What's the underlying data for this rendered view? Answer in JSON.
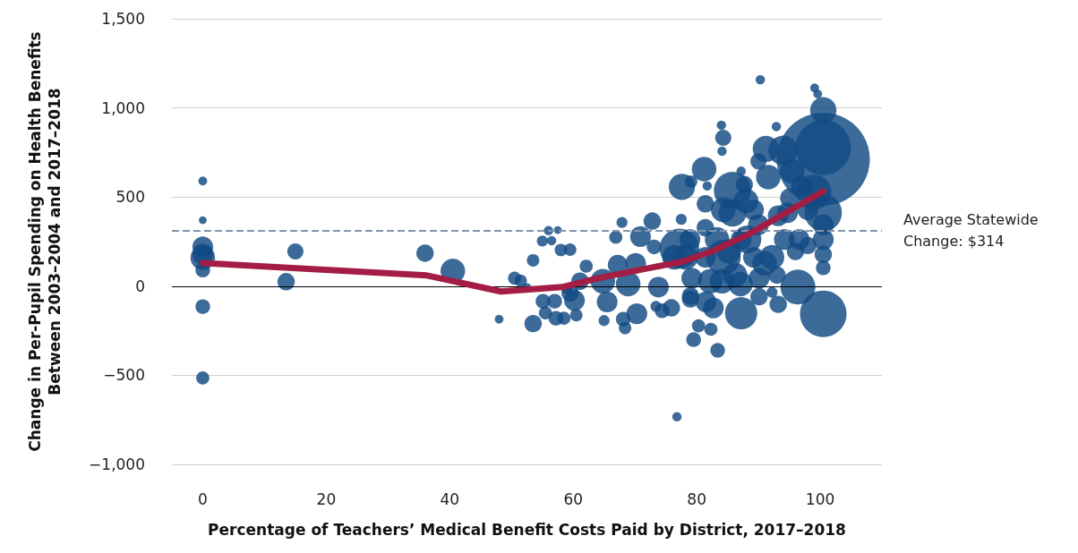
{
  "chart_data": {
    "type": "bubble",
    "xlabel": "Percentage of Teachers’ Medical Benefit Costs Paid by District, 2017–2018",
    "ylabel": "Change in Per-Pupil Spending on Health Benefits\nBetween 2003–2004 and 2017–2018",
    "xlim": [
      -5,
      110
    ],
    "xticks": [
      0,
      20,
      40,
      60,
      80,
      100
    ],
    "ylim": [
      -1000,
      1500
    ],
    "yticks": [
      {
        "value": -1000,
        "label": "−1,000"
      },
      {
        "value": -500,
        "label": "−500"
      },
      0,
      500,
      {
        "value": 1000,
        "label": "1,000"
      },
      {
        "value": 1500,
        "label": "1,500"
      }
    ],
    "grid": "y",
    "marker": "circle",
    "ref_lines": [
      {
        "axis": "y",
        "value": 314,
        "label": "Average Statewide Change: $314",
        "color": "#8594ad",
        "line_style": "dashed"
      },
      {
        "axis": "y",
        "value": 0,
        "color": "#000000",
        "line_style": "solid"
      }
    ],
    "series": [
      {
        "color": "#114a82",
        "x": [
          0,
          0,
          0,
          0,
          0,
          0,
          0,
          0,
          15,
          13.5,
          36,
          40.5,
          48,
          50.5,
          51.5,
          52.5,
          53.5,
          53.5,
          55.5,
          56.5,
          57.5,
          57,
          58.5,
          59.5,
          59,
          90.3,
          99.1,
          99.6,
          100.5,
          100.5,
          100.5,
          84,
          84.3,
          84.1,
          92.9,
          91.2,
          90,
          87.2,
          81.2,
          77.6,
          79.1,
          81.7,
          85.8,
          100.5,
          87.7,
          94,
          95.5,
          91.6,
          99,
          95.1,
          100.5,
          100.5,
          100.5,
          100.5,
          96.6,
          93.2,
          89.2,
          81.4,
          85.8,
          81.4,
          83.3,
          88.2,
          84.3,
          86.2,
          91,
          93,
          96.4,
          100.5,
          93.2,
          92.2,
          90.1,
          87.2,
          83.4,
          79.5,
          82.3,
          80.3,
          82.7,
          79,
          76.8,
          77.5,
          72.8,
          70.9,
          67.9,
          66.9,
          73.1,
          58,
          56,
          55,
          62.1,
          67.2,
          70.1,
          64.8,
          68.9,
          73.8,
          77.2,
          78.2,
          79.2,
          82.2,
          84.1,
          87.1,
          90.1,
          61.1,
          60.2,
          55.1,
          57.2,
          60.5,
          65,
          68.1,
          68.4,
          65.5,
          70.3,
          74.4,
          73.4,
          75.9,
          79,
          81.5,
          59.5,
          96,
          98,
          98,
          97,
          88,
          90,
          84.3,
          87.2,
          85.2,
          81.4,
          78.9,
          76.4,
          94.2,
          92.2,
          89.2,
          94.7
        ],
        "values": [
          590,
          370,
          220,
          180,
          160,
          90,
          -115,
          -515,
          195,
          25,
          185,
          85,
          -185,
          45,
          30,
          -10,
          145,
          -210,
          -150,
          255,
          315,
          -85,
          -180,
          205,
          -15,
          1158,
          1112,
          1078,
          987,
          712,
          778,
          903,
          832,
          757,
          895,
          770,
          700,
          645,
          657,
          557,
          587,
          562,
          537,
          412,
          570,
          762,
          645,
          612,
          528,
          495,
          345,
          262,
          178,
          103,
          262,
          395,
          428,
          462,
          412,
          328,
          262,
          262,
          162,
          62,
          128,
          62,
          -5,
          -155,
          -102,
          -35,
          -59,
          -152,
          -360,
          -300,
          -242,
          -222,
          -122,
          -55,
          -733,
          375,
          365,
          278,
          357,
          275,
          220,
          203,
          312,
          253,
          112,
          120,
          128,
          28,
          12,
          -5,
          212,
          162,
          45,
          28,
          28,
          12,
          45,
          28,
          -80,
          -85,
          -180,
          -163,
          -193,
          -185,
          -235,
          -88,
          -155,
          -138,
          -113,
          -122,
          -72,
          -88,
          -38,
          195,
          228,
          428,
          562,
          478,
          345,
          428,
          262,
          195,
          162,
          262,
          162,
          262,
          162,
          162,
          412
        ],
        "sizes": [
          0.009,
          0.007,
          0.05,
          0.05,
          0.07,
          0.025,
          0.025,
          0.02,
          0.03,
          0.035,
          0.035,
          0.07,
          0.009,
          0.02,
          0.018,
          0.01,
          0.018,
          0.035,
          0.02,
          0.01,
          0.007,
          0.025,
          0.02,
          0.018,
          0.014,
          0.01,
          0.009,
          0.009,
          0.08,
          1,
          0.35,
          0.01,
          0.03,
          0.01,
          0.01,
          0.08,
          0.03,
          0.01,
          0.07,
          0.08,
          0.018,
          0.01,
          0.16,
          0.16,
          0.035,
          0.1,
          0.07,
          0.07,
          0.14,
          0.045,
          0.05,
          0.05,
          0.035,
          0.025,
          0.05,
          0.05,
          0.05,
          0.035,
          0.09,
          0.035,
          0.07,
          0.09,
          0.14,
          0.07,
          0.07,
          0.035,
          0.14,
          0.25,
          0.035,
          0.014,
          0.035,
          0.12,
          0.025,
          0.025,
          0.02,
          0.02,
          0.05,
          0.035,
          0.01,
          0.014,
          0.035,
          0.05,
          0.014,
          0.02,
          0.025,
          0.018,
          0.01,
          0.014,
          0.02,
          0.045,
          0.05,
          0.07,
          0.07,
          0.05,
          0.18,
          0.07,
          0.05,
          0.07,
          0.07,
          0.07,
          0.05,
          0.035,
          0.05,
          0.025,
          0.025,
          0.018,
          0.014,
          0.025,
          0.018,
          0.05,
          0.05,
          0.025,
          0.014,
          0.035,
          0.035,
          0.05,
          0.035,
          0.035,
          0.035,
          0.05,
          0.05,
          0.07,
          0.05,
          0.07,
          0.05,
          0.07,
          0.05,
          0.05,
          0.07,
          0.05,
          0.07,
          0.05,
          0.05
        ]
      },
      {
        "type": "line",
        "color": "#a31d45",
        "x": [
          0,
          36.3,
          48.3,
          54.3,
          58.2,
          64,
          71.3,
          77.6,
          82.4,
          88.2,
          93.2,
          100.5
        ],
        "values": [
          130,
          60,
          -30,
          -15,
          -5,
          45,
          95,
          137,
          195,
          287,
          387,
          532
        ],
        "marker": "none",
        "line_style": "solid"
      }
    ]
  }
}
